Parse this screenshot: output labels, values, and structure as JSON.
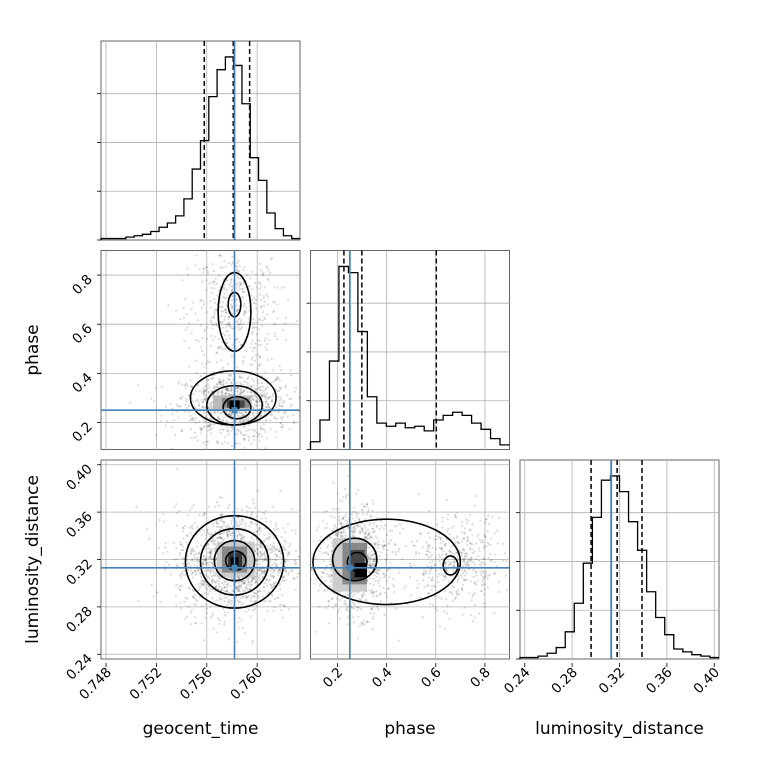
{
  "chart_data": {
    "type": "corner",
    "parameters": [
      "geocent_time",
      "phase",
      "luminosity_distance"
    ],
    "truths": {
      "geocent_time": 0.7582,
      "phase": 0.25,
      "luminosity_distance": 0.313
    },
    "quantiles": {
      "geocent_time": [
        0.7558,
        0.7581,
        0.7594
      ],
      "phase": [
        0.226,
        0.299,
        0.602
      ],
      "luminosity_distance": [
        0.296,
        0.318,
        0.339
      ]
    },
    "ranges": {
      "geocent_time": [
        0.7476,
        0.7634
      ],
      "phase": [
        0.09,
        0.9
      ],
      "luminosity_distance": [
        0.236,
        0.404
      ]
    },
    "ticks": {
      "geocent_time": [
        "0.748",
        "0.752",
        "0.756",
        "0.760"
      ],
      "phase": [
        "0.2",
        "0.4",
        "0.6",
        "0.8"
      ],
      "luminosity_distance": [
        "0.24",
        "0.28",
        "0.32",
        "0.36",
        "0.40"
      ]
    },
    "histograms": {
      "geocent_time": [
        1,
        1,
        1,
        2,
        3,
        4,
        6,
        9,
        12,
        17,
        29,
        50,
        70,
        101,
        120,
        129,
        123,
        96,
        58,
        42,
        19,
        8,
        3,
        1
      ],
      "phase": [
        5,
        19,
        57,
        118,
        114,
        76,
        34,
        17,
        15,
        17,
        14,
        15,
        12,
        19,
        22,
        24,
        22,
        17,
        13,
        7,
        3
      ],
      "luminosity_distance": [
        1,
        1,
        2,
        4,
        8,
        19,
        39,
        67,
        99,
        125,
        128,
        117,
        96,
        76,
        47,
        29,
        17,
        7,
        5,
        3,
        2,
        1
      ]
    },
    "grid": true
  }
}
